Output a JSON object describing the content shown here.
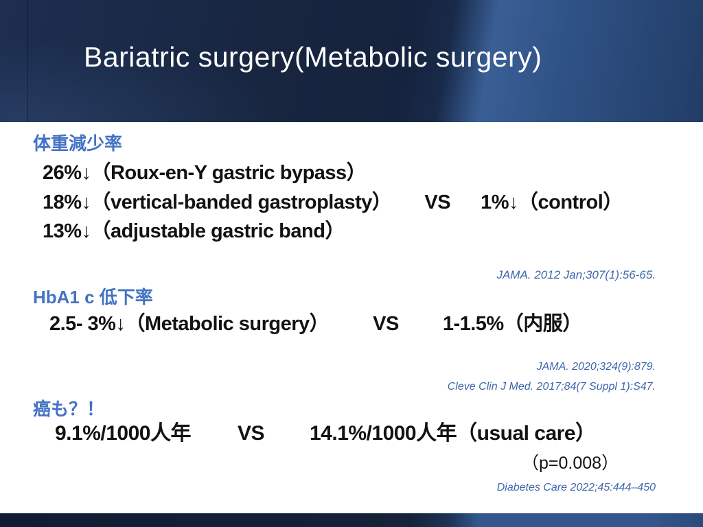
{
  "slide": {
    "title": "Bariatric surgery(Metabolic surgery)",
    "sections": {
      "weight_loss": {
        "heading": "体重減少率",
        "line1": "26%↓（Roux-en-Y gastric bypass）",
        "line2_left": "18%↓（vertical-banded gastroplasty）",
        "line2_vs": "VS",
        "line2_right": "1%↓（control）",
        "line3": "13%↓（adjustable gastric band）",
        "reference": "JAMA. 2012 Jan;307(1):56-65."
      },
      "hba1c": {
        "heading": "HbA1 c 低下率",
        "line1_left": "2.5- 3%↓（Metabolic surgery）",
        "line1_vs": "VS",
        "line1_right": "1-1.5%（内服）",
        "reference1": "JAMA. 2020;324(9):879.",
        "reference2": "Cleve Clin J Med. 2017;84(7 Suppl 1):S47."
      },
      "cancer": {
        "heading": "癌も？！",
        "line1_left": "9.1%/1000人年",
        "line1_vs": "VS",
        "line1_right": "14.1%/1000人年（usual care）",
        "p_value": "（p=0.008）",
        "reference": "Diabetes Care 2022;45:444–450"
      }
    },
    "colors": {
      "header_navy_dark": "#16233e",
      "header_blue_light": "#3a5f96",
      "footer_navy": "#152239",
      "footer_blue": "#33578d",
      "heading_blue": "#4472c4",
      "reference_blue": "#3e66ae",
      "body_text": "#121212",
      "background": "#ffffff",
      "title_text": "#ffffff"
    }
  }
}
